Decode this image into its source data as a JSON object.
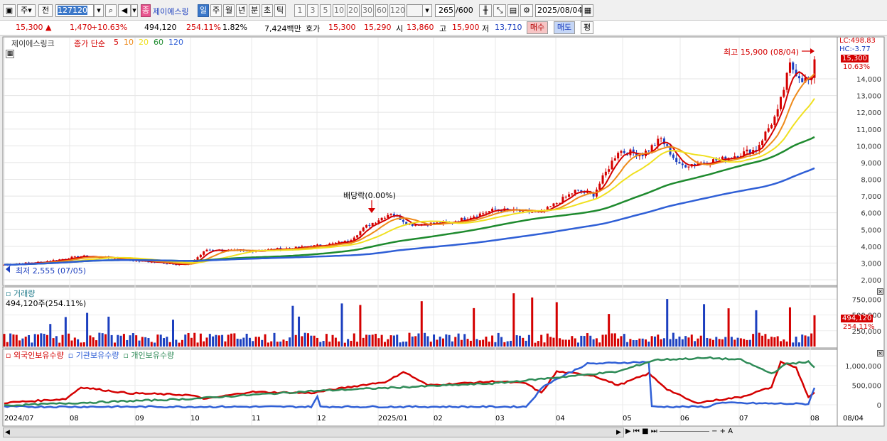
{
  "toolbar": {
    "market_label": "주",
    "prev_label": "전",
    "stock_code": "127120",
    "badge": "종",
    "stock_name": "제이에스링",
    "periods": [
      "일",
      "주",
      "월",
      "년",
      "분",
      "초",
      "틱"
    ],
    "active_period": "일",
    "intervals": [
      "1",
      "3",
      "5",
      "10",
      "20",
      "30",
      "60",
      "120"
    ],
    "count": "265",
    "count_total": "/600",
    "date": "2025/08/04"
  },
  "quote": {
    "price": "15,300",
    "change": "1,470",
    "change_pct": "+10.63%",
    "volume": "494,120",
    "volume_pct": "254.11%",
    "turnover_pct": "1.82%",
    "amount": "7,424백만",
    "bid_label": "호가",
    "bid": "15,300",
    "ask": "15,290",
    "open_label": "시",
    "open": "13,860",
    "high_label": "고",
    "high": "15,900",
    "low_label": "저",
    "low": "13,710",
    "buy_label": "매수",
    "sell_label": "매도",
    "eval_label": "평"
  },
  "price_panel": {
    "stock_name": "제이에스링크",
    "ma_label": "종가 단순",
    "ma_periods": [
      "5",
      "10",
      "20",
      "60",
      "120"
    ],
    "ma_colors": [
      "#d40000",
      "#ee8a1a",
      "#f0e020",
      "#1e8a2e",
      "#2f5fd6"
    ],
    "lc": "LC:498.83",
    "hc": "HC:-3.77",
    "last_price": "15,300",
    "last_pct": "10.63%",
    "high_note": "최고 15,900 (08/04)",
    "low_note": "최저 2,555 (07/05)",
    "dividend_note": "배당락(0.00%)",
    "y_ticks": [
      "14,000",
      "13,000",
      "12,000",
      "11,000",
      "10,000",
      "9,000",
      "8,000",
      "7,000",
      "6,000",
      "5,000",
      "4,000",
      "3,000",
      "2,000"
    ]
  },
  "volume_panel": {
    "title": "거래량",
    "value_note": "494,120주(254.11%)",
    "y_ticks": [
      "750,000",
      "500,000",
      "250,000"
    ],
    "last_value": "494,120",
    "last_pct": "254.11%"
  },
  "holdings_panel": {
    "series": [
      "외국인보유수량",
      "기관보유수량",
      "개인보유수량"
    ],
    "colors": [
      "#d40000",
      "#2f5fd6",
      "#2e8b57"
    ],
    "y_ticks": [
      "1,000,000",
      "500,000",
      "0"
    ]
  },
  "x_axis": {
    "labels": [
      "2024/07",
      "08",
      "09",
      "10",
      "11",
      "12",
      "2025/01",
      "02",
      "03",
      "04",
      "05",
      "06",
      "07",
      "08"
    ],
    "right_label": "08/04"
  }
}
